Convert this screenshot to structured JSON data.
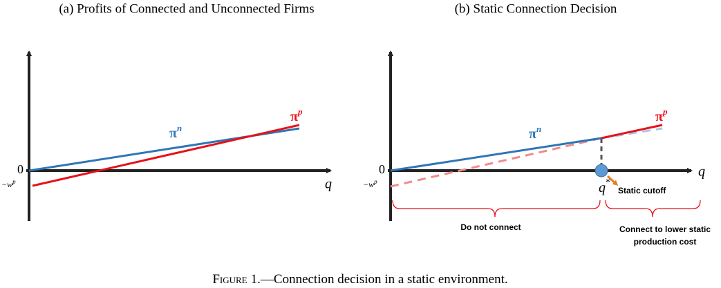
{
  "panels": [
    {
      "title": "(a) Profits of Connected and Unconnected Firms",
      "pi_n": {
        "base": "π",
        "sup": "n"
      },
      "pi_p": {
        "base": "π",
        "sup": "p"
      },
      "zero": "0",
      "neg_w": {
        "base": "−w",
        "sup": "p"
      },
      "x_label": "q"
    },
    {
      "title": "(b) Static Connection Decision",
      "pi_n": {
        "base": "π",
        "sup": "n"
      },
      "pi_p": {
        "base": "π",
        "sup": "p"
      },
      "zero": "0",
      "neg_w": {
        "base": "−w",
        "sup": "p"
      },
      "x_label": "q",
      "cutoff_label": {
        "base": "q",
        "sup": "*"
      },
      "cutoff_note": "Static cutoff",
      "left_region": "Do not connect",
      "right_region": [
        "Connect to lower static",
        "production cost"
      ]
    }
  ],
  "caption": {
    "label": "Figure",
    "text": "1.—Connection decision in a static environment."
  }
}
